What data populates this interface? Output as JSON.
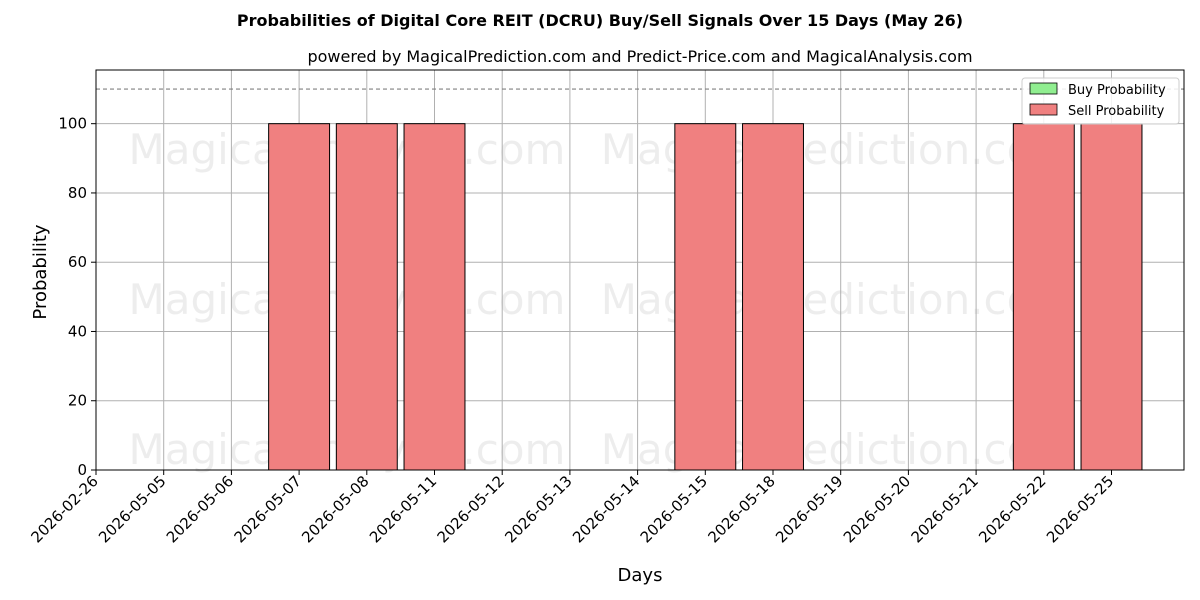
{
  "chart_data": {
    "type": "bar",
    "title": "Probabilities of Digital Core REIT (DCRU) Buy/Sell Signals Over 15 Days (May 26)",
    "subtitle": "powered by MagicalPrediction.com and Predict-Price.com and MagicalAnalysis.com",
    "xlabel": "Days",
    "ylabel": "Probability",
    "categories": [
      "2026-02-26",
      "2026-05-05",
      "2026-05-06",
      "2026-05-07",
      "2026-05-08",
      "2026-05-11",
      "2026-05-12",
      "2026-05-13",
      "2026-05-14",
      "2026-05-15",
      "2026-05-18",
      "2026-05-19",
      "2026-05-20",
      "2026-05-21",
      "2026-05-22",
      "2026-05-25"
    ],
    "series": [
      {
        "name": "Buy Probability",
        "color": "#90ee90",
        "values": [
          0,
          0,
          0,
          0,
          0,
          0,
          0,
          0,
          0,
          0,
          0,
          0,
          0,
          0,
          0,
          0
        ]
      },
      {
        "name": "Sell Probability",
        "color": "#f08080",
        "values": [
          null,
          null,
          null,
          100,
          100,
          100,
          null,
          null,
          null,
          100,
          100,
          null,
          null,
          null,
          100,
          100
        ]
      }
    ],
    "ylim": [
      0,
      115.5
    ],
    "yticks": [
      "0",
      "20",
      "40",
      "60",
      "80",
      "100"
    ],
    "reference_line": 110,
    "grid": true,
    "legend_position": "top-right",
    "watermarks": [
      "MagicalAnalysis.com",
      "MagicalPrediction.com",
      "MagicalAnalysis.com",
      "MagicalPrediction.com",
      "MagicalAnalysis.com",
      "MagicalPrediction.com"
    ]
  }
}
